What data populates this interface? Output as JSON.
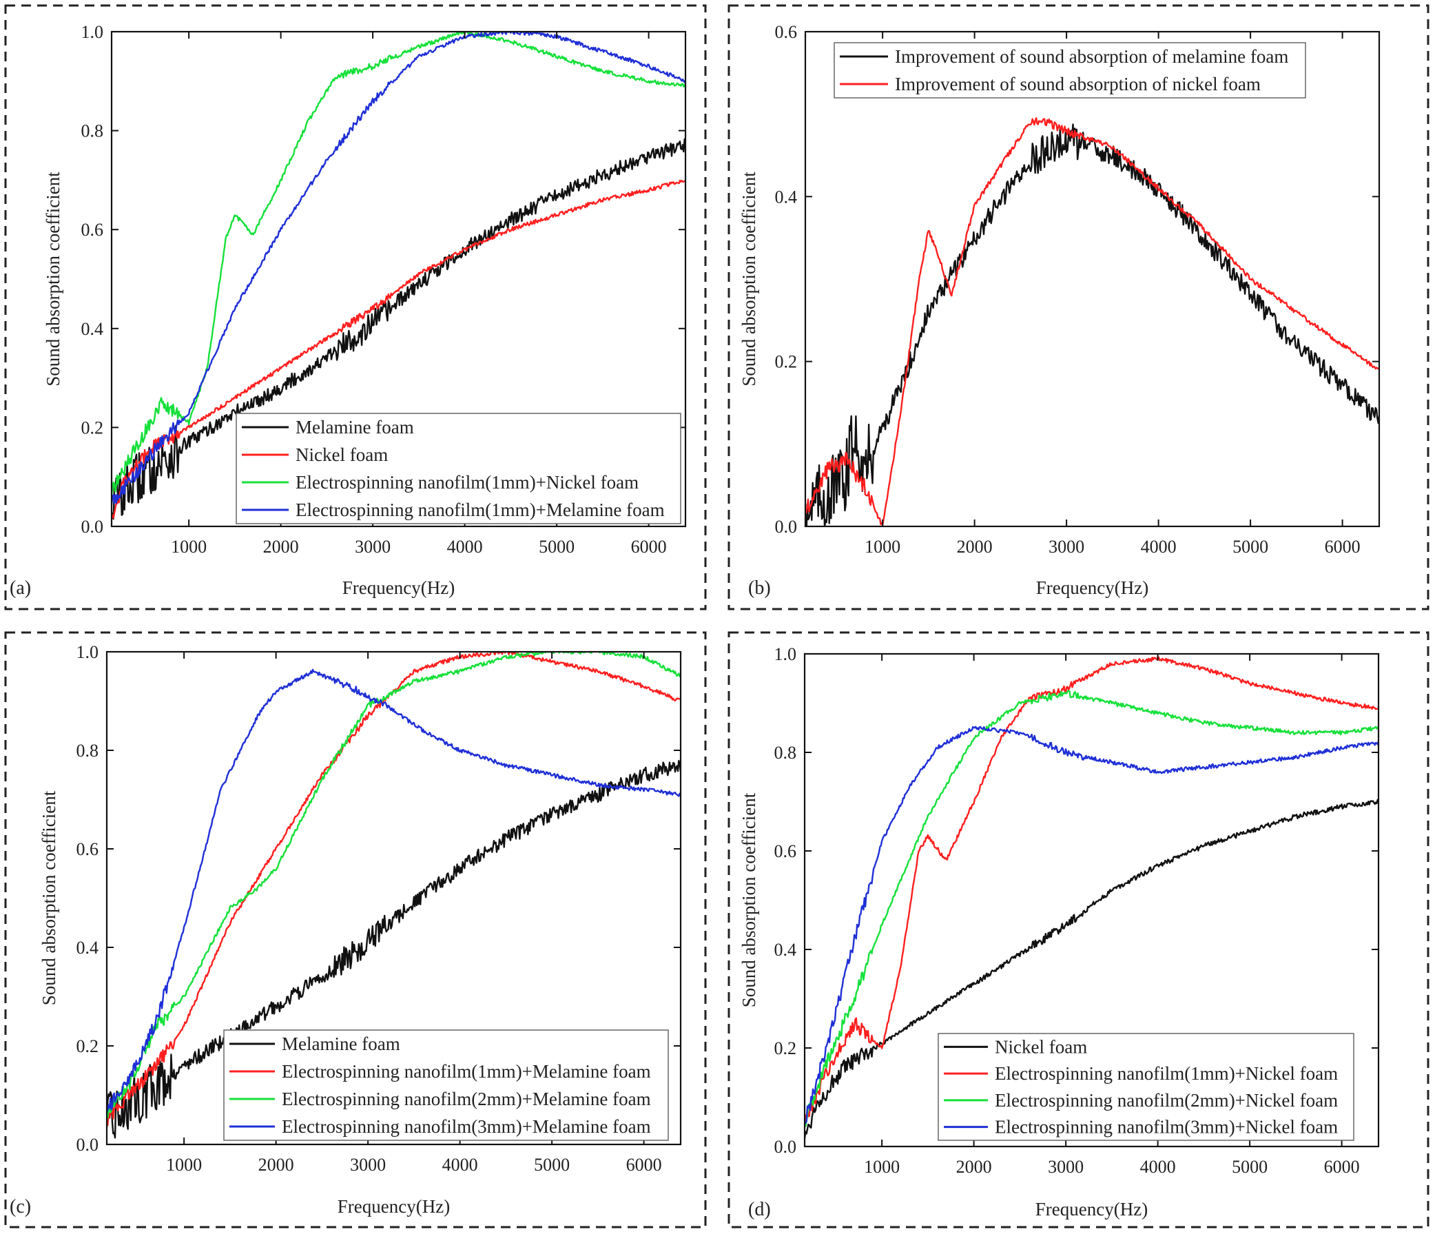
{
  "figure": {
    "colors": {
      "black": "#111111",
      "red": "#ff1f1f",
      "green": "#16e03a",
      "blue": "#1f2fd6"
    }
  },
  "chart_data": [
    {
      "id": "a",
      "panel_label": "(a)",
      "type": "line",
      "xlabel": "Frequency(Hz)",
      "ylabel": "Sound absorption coefficient",
      "xlim": [
        160,
        6400
      ],
      "ylim": [
        0,
        1.0
      ],
      "xticks": [
        1000,
        2000,
        3000,
        4000,
        5000,
        6000
      ],
      "yticks": [
        0.0,
        0.2,
        0.4,
        0.6,
        0.8,
        1.0
      ],
      "legend_position": "bottom-right",
      "series": [
        {
          "name": "Melamine foam",
          "color": "#111111",
          "noise": 0.015,
          "x": [
            160,
            400,
            700,
            1000,
            1500,
            2000,
            2500,
            3000,
            3500,
            4000,
            4500,
            5000,
            5500,
            6000,
            6400
          ],
          "y": [
            0.05,
            0.09,
            0.13,
            0.17,
            0.23,
            0.28,
            0.34,
            0.41,
            0.49,
            0.56,
            0.62,
            0.67,
            0.71,
            0.75,
            0.77
          ]
        },
        {
          "name": "Nickel foam",
          "color": "#ff1f1f",
          "noise": 0.004,
          "x": [
            160,
            300,
            600,
            1000,
            1500,
            2000,
            2500,
            3000,
            3500,
            4000,
            4500,
            5000,
            5500,
            6000,
            6400
          ],
          "y": [
            0.02,
            0.09,
            0.16,
            0.2,
            0.26,
            0.32,
            0.38,
            0.44,
            0.51,
            0.56,
            0.6,
            0.63,
            0.66,
            0.68,
            0.7
          ]
        },
        {
          "name": "Electrospinning nanofilm(1mm)+Nickel foam",
          "color": "#16e03a",
          "noise": 0.004,
          "x": [
            160,
            400,
            700,
            1000,
            1200,
            1400,
            1500,
            1700,
            2000,
            2300,
            2600,
            3000,
            3500,
            4000,
            4500,
            5000,
            5500,
            6000,
            6400
          ],
          "y": [
            0.07,
            0.15,
            0.25,
            0.21,
            0.32,
            0.58,
            0.63,
            0.59,
            0.7,
            0.82,
            0.91,
            0.93,
            0.97,
            1.0,
            0.98,
            0.95,
            0.92,
            0.9,
            0.89
          ]
        },
        {
          "name": "Electrospinning nanofilm(1mm)+Melamine foam",
          "color": "#1f2fd6",
          "noise": 0.004,
          "x": [
            160,
            400,
            700,
            1000,
            1500,
            2000,
            2500,
            3000,
            3500,
            4000,
            4500,
            5000,
            5500,
            6000,
            6400
          ],
          "y": [
            0.05,
            0.1,
            0.17,
            0.23,
            0.44,
            0.6,
            0.74,
            0.86,
            0.95,
            0.99,
            1.0,
            0.99,
            0.96,
            0.93,
            0.9
          ]
        }
      ]
    },
    {
      "id": "b",
      "panel_label": "(b)",
      "type": "line",
      "xlabel": "Frequency(Hz)",
      "ylabel": "Sound absorption coefficient",
      "xlim": [
        160,
        6400
      ],
      "ylim": [
        0,
        0.6
      ],
      "xticks": [
        1000,
        2000,
        3000,
        4000,
        5000,
        6000
      ],
      "yticks": [
        0.0,
        0.2,
        0.4,
        0.6
      ],
      "legend_position": "top",
      "series": [
        {
          "name": "Improvement of sound absorption of melamine foam",
          "color": "#111111",
          "noise": 0.012,
          "x": [
            160,
            400,
            600,
            700,
            800,
            1000,
            1200,
            1500,
            2000,
            2500,
            2800,
            3000,
            3500,
            4000,
            4500,
            5000,
            5500,
            6000,
            6400
          ],
          "y": [
            0.02,
            0.04,
            0.06,
            0.12,
            0.07,
            0.12,
            0.17,
            0.26,
            0.35,
            0.43,
            0.46,
            0.47,
            0.45,
            0.41,
            0.35,
            0.28,
            0.22,
            0.17,
            0.13
          ]
        },
        {
          "name": "Improvement of sound absorption of nickel foam",
          "color": "#ff1f1f",
          "noise": 0.003,
          "x": [
            160,
            400,
            600,
            800,
            1000,
            1200,
            1400,
            1500,
            1600,
            1750,
            2000,
            2300,
            2600,
            2800,
            3000,
            3500,
            4000,
            4500,
            5000,
            5500,
            6000,
            6400
          ],
          "y": [
            0.02,
            0.07,
            0.08,
            0.05,
            0.0,
            0.14,
            0.3,
            0.36,
            0.33,
            0.28,
            0.39,
            0.44,
            0.49,
            0.49,
            0.48,
            0.46,
            0.41,
            0.36,
            0.3,
            0.26,
            0.22,
            0.19
          ]
        }
      ]
    },
    {
      "id": "c",
      "panel_label": "(c)",
      "type": "line",
      "xlabel": "Frequency(Hz)",
      "ylabel": "Sound absorption coefficient",
      "xlim": [
        160,
        6400
      ],
      "ylim": [
        0,
        1.0
      ],
      "xticks": [
        1000,
        2000,
        3000,
        4000,
        5000,
        6000
      ],
      "yticks": [
        0.0,
        0.2,
        0.4,
        0.6,
        0.8,
        1.0
      ],
      "legend_position": "bottom-right",
      "series": [
        {
          "name": "Melamine foam",
          "color": "#111111",
          "noise": 0.015,
          "x": [
            160,
            400,
            700,
            1000,
            1500,
            2000,
            2500,
            3000,
            3500,
            4000,
            4500,
            5000,
            5500,
            6000,
            6400
          ],
          "y": [
            0.05,
            0.08,
            0.12,
            0.16,
            0.22,
            0.28,
            0.34,
            0.41,
            0.49,
            0.56,
            0.62,
            0.67,
            0.71,
            0.75,
            0.77
          ]
        },
        {
          "name": "Electrospinning nanofilm(1mm)+Melamine foam",
          "color": "#ff1f1f",
          "noise": 0.004,
          "x": [
            160,
            400,
            700,
            1000,
            1500,
            2000,
            2500,
            3000,
            3500,
            4000,
            4500,
            5000,
            5500,
            6000,
            6400
          ],
          "y": [
            0.05,
            0.1,
            0.16,
            0.24,
            0.45,
            0.6,
            0.75,
            0.87,
            0.96,
            0.99,
            1.0,
            0.98,
            0.96,
            0.93,
            0.9
          ]
        },
        {
          "name": "Electrospinning nanofilm(2mm)+Melamine foam",
          "color": "#16e03a",
          "noise": 0.004,
          "x": [
            160,
            400,
            700,
            1000,
            1500,
            1800,
            2000,
            2500,
            3000,
            3500,
            4000,
            4500,
            5000,
            5500,
            6000,
            6400
          ],
          "y": [
            0.06,
            0.12,
            0.24,
            0.3,
            0.48,
            0.52,
            0.56,
            0.74,
            0.89,
            0.94,
            0.96,
            0.99,
            1.0,
            1.0,
            0.99,
            0.95
          ]
        },
        {
          "name": "Electrospinning nanofilm(3mm)+Melamine foam",
          "color": "#1f2fd6",
          "noise": 0.004,
          "x": [
            160,
            400,
            700,
            1000,
            1400,
            1800,
            2000,
            2400,
            2800,
            3200,
            3600,
            4000,
            4500,
            5000,
            5500,
            6000,
            6400
          ],
          "y": [
            0.07,
            0.13,
            0.25,
            0.44,
            0.72,
            0.87,
            0.92,
            0.96,
            0.93,
            0.89,
            0.84,
            0.8,
            0.77,
            0.75,
            0.73,
            0.72,
            0.71
          ]
        }
      ]
    },
    {
      "id": "d",
      "panel_label": "(d)",
      "type": "line",
      "xlabel": "Frequency(Hz)",
      "ylabel": "Sound absorption coefficient",
      "xlim": [
        160,
        6400
      ],
      "ylim": [
        0,
        1.0
      ],
      "xticks": [
        1000,
        2000,
        3000,
        4000,
        5000,
        6000
      ],
      "yticks": [
        0.0,
        0.2,
        0.4,
        0.6,
        0.8,
        1.0
      ],
      "legend_position": "bottom-right",
      "series": [
        {
          "name": "Nickel foam",
          "color": "#111111",
          "noise": 0.005,
          "x": [
            160,
            300,
            600,
            1000,
            1500,
            2000,
            2500,
            3000,
            3500,
            4000,
            4500,
            5000,
            5500,
            6000,
            6400
          ],
          "y": [
            0.02,
            0.09,
            0.16,
            0.21,
            0.27,
            0.33,
            0.39,
            0.45,
            0.52,
            0.57,
            0.61,
            0.64,
            0.67,
            0.69,
            0.7
          ]
        },
        {
          "name": "Electrospinning nanofilm(1mm)+Nickel foam",
          "color": "#ff1f1f",
          "noise": 0.004,
          "x": [
            160,
            400,
            700,
            1000,
            1200,
            1400,
            1500,
            1700,
            2000,
            2300,
            2600,
            3000,
            3500,
            4000,
            4500,
            5000,
            5500,
            6000,
            6400
          ],
          "y": [
            0.05,
            0.15,
            0.25,
            0.2,
            0.36,
            0.6,
            0.63,
            0.58,
            0.7,
            0.83,
            0.91,
            0.93,
            0.98,
            0.99,
            0.97,
            0.94,
            0.92,
            0.9,
            0.89
          ]
        },
        {
          "name": "Electrospinning nanofilm(2mm)+Nickel foam",
          "color": "#16e03a",
          "noise": 0.004,
          "x": [
            160,
            400,
            700,
            1000,
            1500,
            2000,
            2500,
            3000,
            3500,
            4000,
            4500,
            5000,
            5500,
            6000,
            6400
          ],
          "y": [
            0.05,
            0.17,
            0.3,
            0.45,
            0.67,
            0.83,
            0.9,
            0.92,
            0.9,
            0.88,
            0.86,
            0.85,
            0.84,
            0.84,
            0.85
          ]
        },
        {
          "name": "Electrospinning nanofilm(3mm)+Nickel foam",
          "color": "#1f2fd6",
          "noise": 0.004,
          "x": [
            160,
            400,
            700,
            1000,
            1300,
            1600,
            2000,
            2500,
            3000,
            3500,
            4000,
            4500,
            5000,
            5500,
            6000,
            6400
          ],
          "y": [
            0.05,
            0.2,
            0.42,
            0.62,
            0.73,
            0.81,
            0.85,
            0.84,
            0.8,
            0.78,
            0.76,
            0.77,
            0.78,
            0.79,
            0.81,
            0.82
          ]
        }
      ]
    }
  ]
}
